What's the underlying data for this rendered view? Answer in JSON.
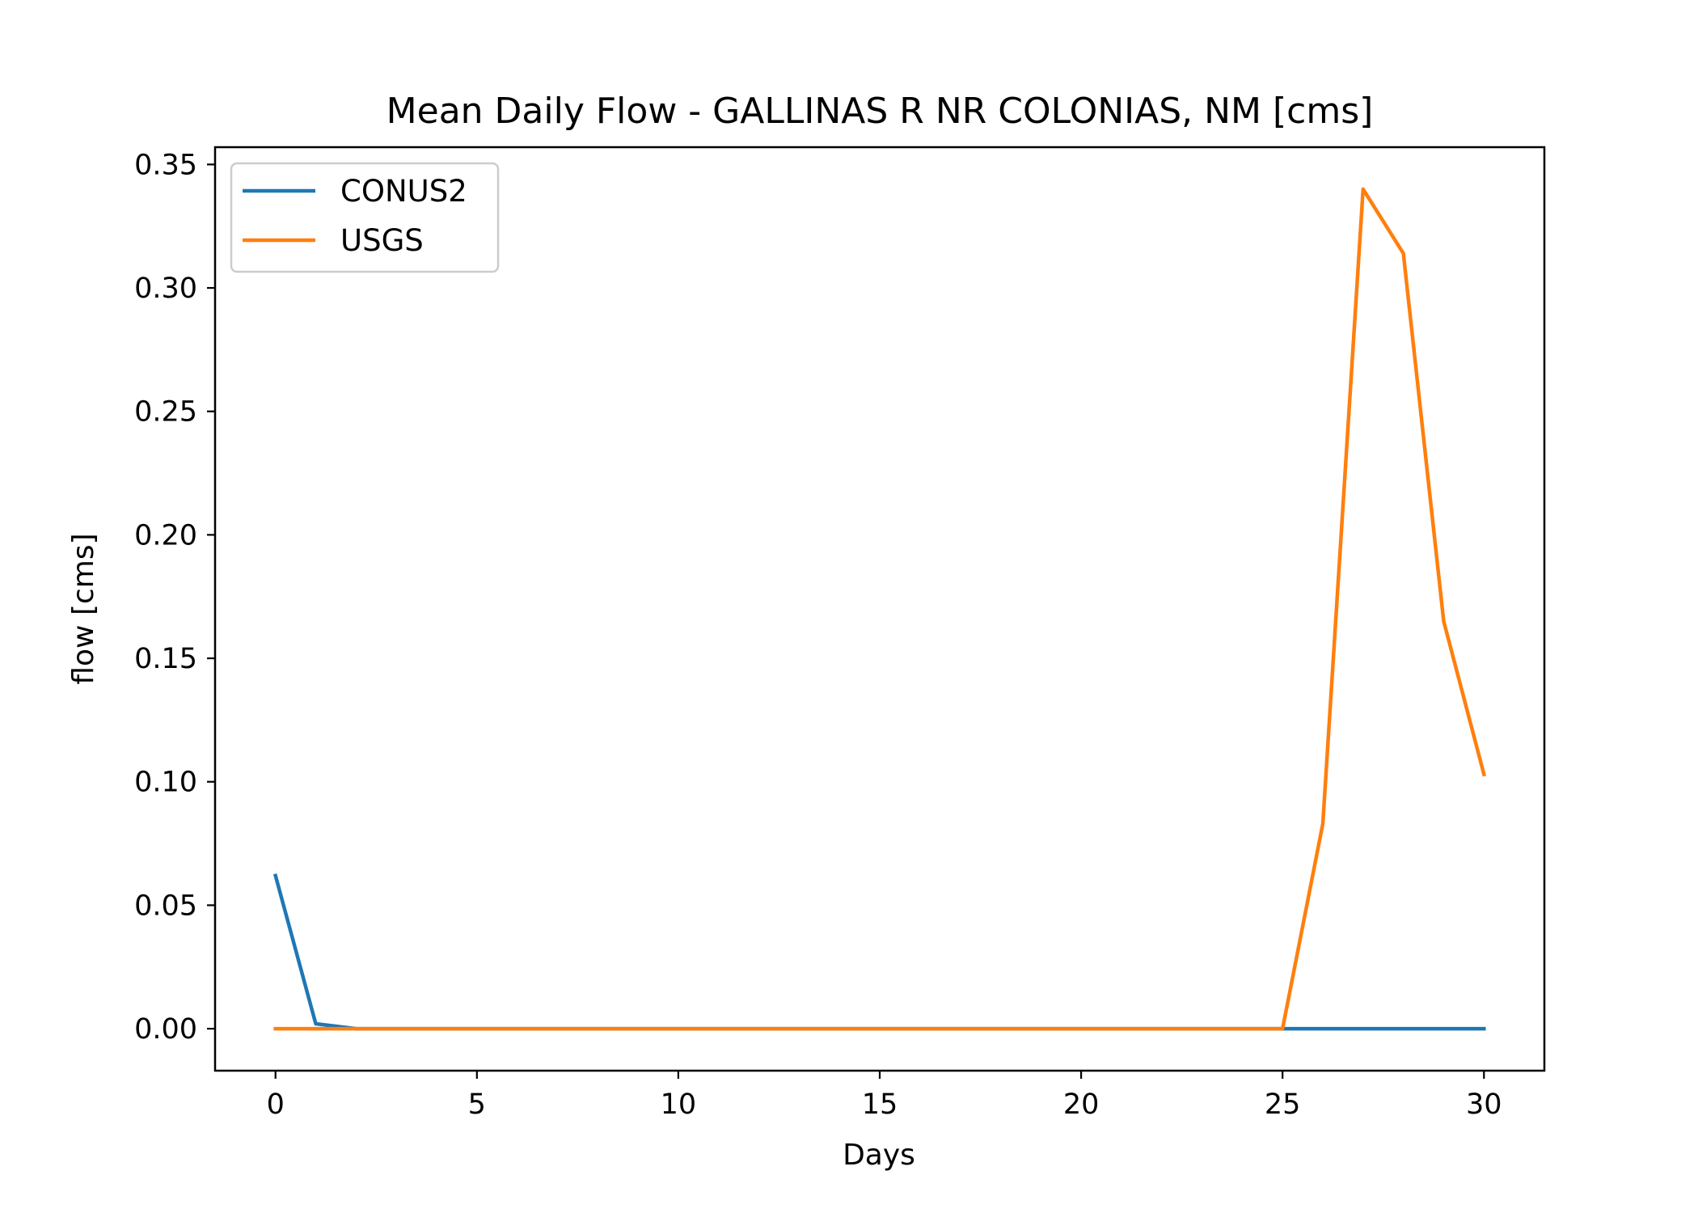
{
  "chart_data": {
    "type": "line",
    "title": "Mean Daily Flow - GALLINAS R NR COLONIAS, NM [cms]",
    "xlabel": "Days",
    "ylabel": "flow [cms]",
    "xlim": [
      -1.5,
      31.5
    ],
    "ylim": [
      -0.017,
      0.357
    ],
    "x_ticks": [
      0,
      5,
      10,
      15,
      20,
      25,
      30
    ],
    "x_tick_labels": [
      "0",
      "5",
      "10",
      "15",
      "20",
      "25",
      "30"
    ],
    "y_ticks": [
      0.0,
      0.05,
      0.1,
      0.15,
      0.2,
      0.25,
      0.3,
      0.35
    ],
    "y_tick_labels": [
      "0.00",
      "0.05",
      "0.10",
      "0.15",
      "0.20",
      "0.25",
      "0.30",
      "0.35"
    ],
    "grid": false,
    "legend_position": "top-left",
    "x": [
      0,
      1,
      2,
      3,
      4,
      5,
      6,
      7,
      8,
      9,
      10,
      11,
      12,
      13,
      14,
      15,
      16,
      17,
      18,
      19,
      20,
      21,
      22,
      23,
      24,
      25,
      26,
      27,
      28,
      29,
      30
    ],
    "series": [
      {
        "name": "CONUS2",
        "color": "#1f77b4",
        "values": [
          0.062,
          0.002,
          0,
          0,
          0,
          0,
          0,
          0,
          0,
          0,
          0,
          0,
          0,
          0,
          0,
          0,
          0,
          0,
          0,
          0,
          0,
          0,
          0,
          0,
          0,
          0,
          0,
          0,
          0,
          0,
          0
        ]
      },
      {
        "name": "USGS",
        "color": "#ff7f0e",
        "values": [
          0,
          0,
          0,
          0,
          0,
          0,
          0,
          0,
          0,
          0,
          0,
          0,
          0,
          0,
          0,
          0,
          0,
          0,
          0,
          0,
          0,
          0,
          0,
          0,
          0,
          0,
          0.083,
          0.34,
          0.314,
          0.165,
          0.103
        ]
      }
    ]
  }
}
